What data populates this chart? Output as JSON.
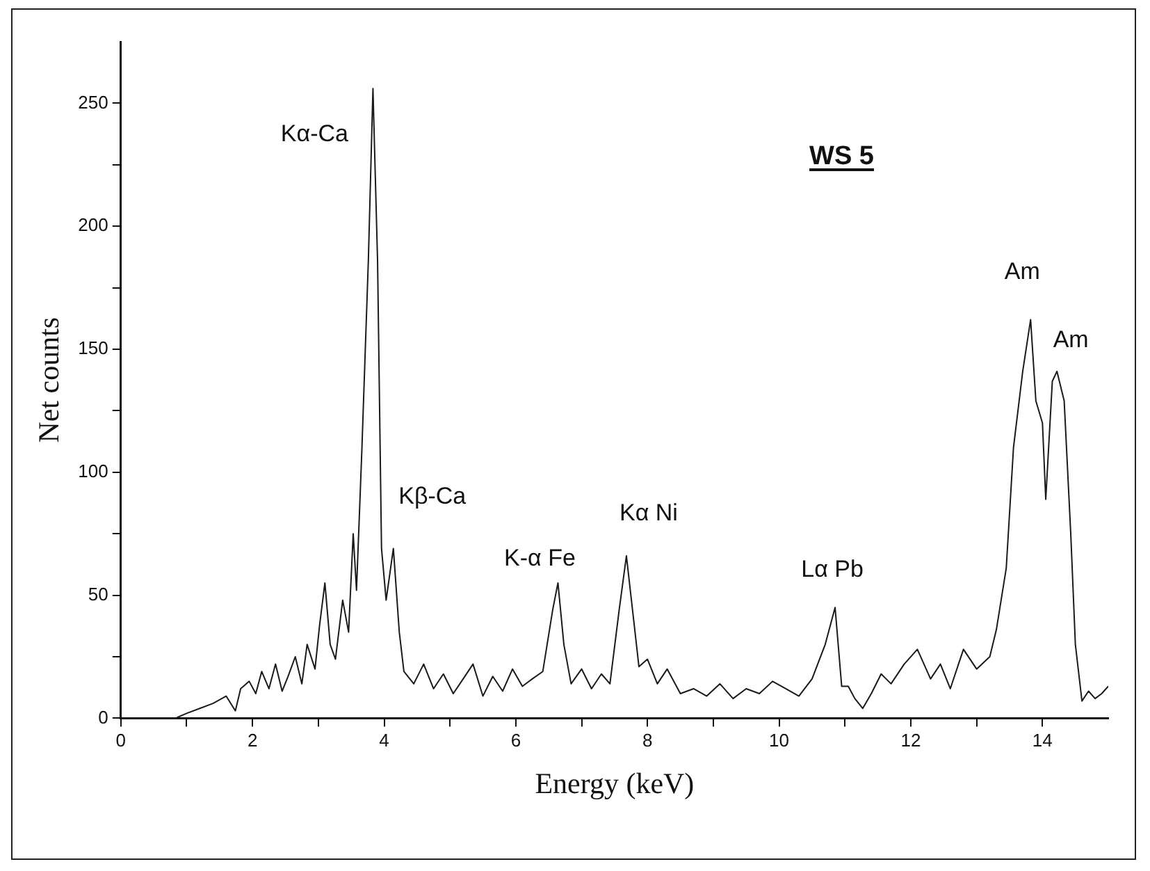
{
  "chart_data": {
    "type": "line",
    "title": "WS 5",
    "xlabel": "Energy (keV)",
    "ylabel": "Net counts",
    "x": [
      0,
      0.5,
      0.83,
      1.0,
      1.2,
      1.4,
      1.6,
      1.74,
      1.82,
      1.95,
      2.05,
      2.14,
      2.25,
      2.35,
      2.45,
      2.54,
      2.65,
      2.75,
      2.83,
      2.95,
      3.02,
      3.1,
      3.18,
      3.26,
      3.37,
      3.46,
      3.53,
      3.58,
      3.66,
      3.76,
      3.83,
      3.9,
      3.96,
      4.03,
      4.14,
      4.23,
      4.3,
      4.45,
      4.6,
      4.75,
      4.9,
      5.05,
      5.2,
      5.35,
      5.5,
      5.65,
      5.8,
      5.95,
      6.1,
      6.25,
      6.41,
      6.56,
      6.64,
      6.73,
      6.84,
      7.0,
      7.15,
      7.3,
      7.43,
      7.57,
      7.68,
      7.79,
      7.87,
      8.0,
      8.15,
      8.3,
      8.5,
      8.7,
      8.9,
      9.1,
      9.3,
      9.5,
      9.7,
      9.9,
      10.1,
      10.3,
      10.5,
      10.7,
      10.85,
      10.95,
      11.05,
      11.15,
      11.27,
      11.4,
      11.55,
      11.7,
      11.9,
      12.1,
      12.3,
      12.45,
      12.6,
      12.8,
      13.0,
      13.2,
      13.3,
      13.45,
      13.56,
      13.7,
      13.82,
      13.9,
      14.0,
      14.05,
      14.15,
      14.22,
      14.33,
      14.43,
      14.5,
      14.6,
      14.7,
      14.8,
      14.9,
      15.0
    ],
    "series": [
      {
        "color": "#1a1a1a",
        "values": [
          0,
          0,
          0,
          2,
          4,
          6,
          9,
          3,
          12,
          15,
          10,
          19,
          12,
          22,
          11,
          17,
          25,
          14,
          30,
          20,
          38,
          55,
          30,
          24,
          48,
          35,
          75,
          52,
          108,
          186,
          256,
          186,
          69,
          48,
          69,
          35,
          19,
          14,
          22,
          12,
          18,
          10,
          16,
          22,
          9,
          17,
          11,
          20,
          13,
          16,
          19,
          44,
          55,
          30,
          14,
          20,
          12,
          18,
          14,
          44,
          66,
          40,
          21,
          24,
          14,
          20,
          10,
          12,
          9,
          14,
          8,
          12,
          10,
          15,
          12,
          9,
          16,
          30,
          45,
          13,
          13,
          8,
          4,
          10,
          18,
          14,
          22,
          28,
          16,
          22,
          12,
          28,
          20,
          25,
          36,
          61,
          110,
          141,
          162,
          129,
          120,
          89,
          137,
          141,
          129,
          75,
          30,
          7,
          11,
          8,
          10,
          13
        ]
      }
    ],
    "xlim": [
      0,
      15
    ],
    "xticks": [
      0,
      {
        "value": 1,
        "label": null
      },
      2,
      {
        "value": 3,
        "label": null
      },
      4,
      {
        "value": 5,
        "label": null
      },
      6,
      {
        "value": 7,
        "label": null
      },
      8,
      {
        "value": 9,
        "label": null
      },
      10,
      {
        "value": 11,
        "label": null
      },
      12,
      {
        "value": 13,
        "label": null
      },
      14
    ],
    "ylim": [
      0,
      275
    ],
    "yticks": [
      0,
      {
        "value": 25,
        "label": null
      },
      50,
      {
        "value": 75,
        "label": null
      },
      100,
      {
        "value": 125,
        "label": null
      },
      150,
      {
        "value": 175,
        "label": null
      },
      200,
      {
        "value": 225,
        "label": null
      },
      250
    ],
    "grid": false,
    "legend": false,
    "marker": "none",
    "line_style": "solid",
    "annotations": [
      {
        "text": "Kα-Ca",
        "x": 3.83,
        "y": 256
      },
      {
        "text": "Kβ-Ca",
        "x": 4.14,
        "y": 69
      },
      {
        "text": "K-α Fe",
        "x": 6.64,
        "y": 55
      },
      {
        "text": "Kα Ni",
        "x": 7.68,
        "y": 66
      },
      {
        "text": "Lα Pb",
        "x": 10.85,
        "y": 45
      },
      {
        "text": "Am",
        "x": 13.82,
        "y": 162
      },
      {
        "text": "Am",
        "x": 14.22,
        "y": 141
      }
    ]
  }
}
